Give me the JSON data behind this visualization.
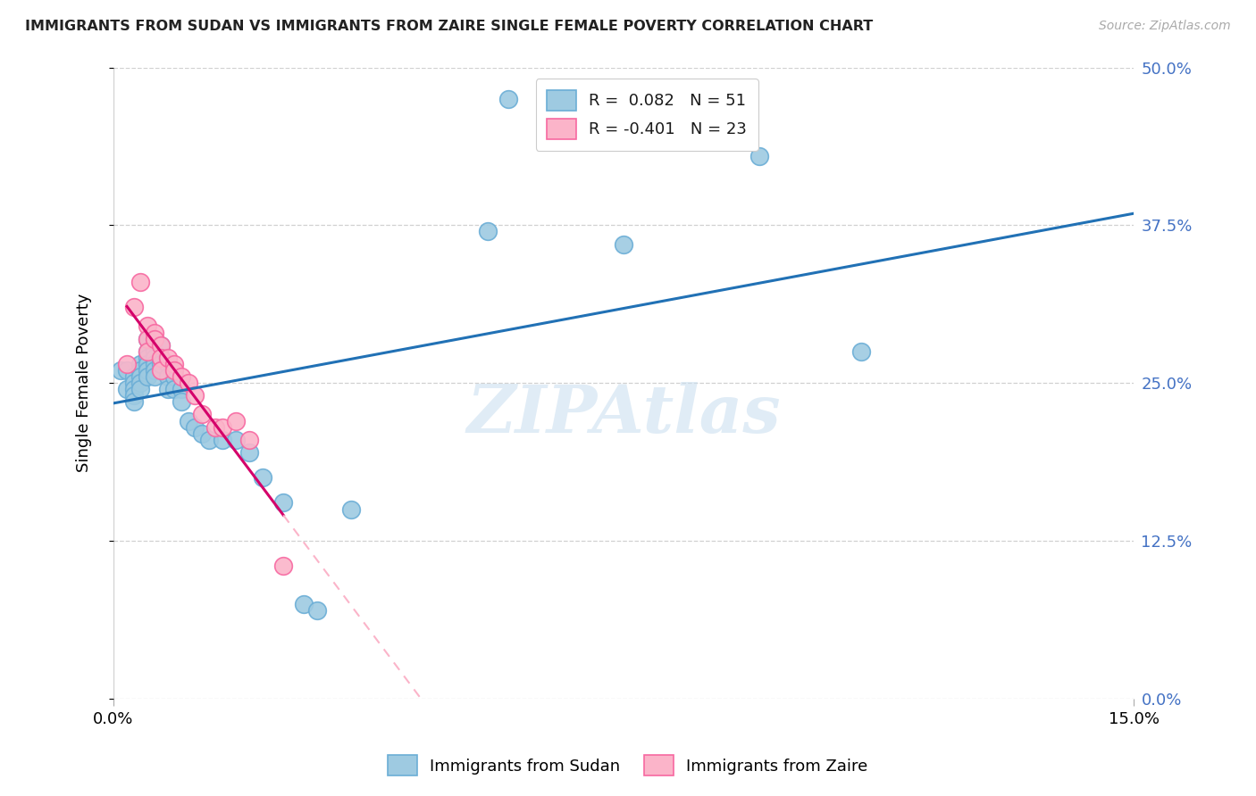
{
  "title": "IMMIGRANTS FROM SUDAN VS IMMIGRANTS FROM ZAIRE SINGLE FEMALE POVERTY CORRELATION CHART",
  "source": "Source: ZipAtlas.com",
  "ylabel_label": "Single Female Poverty",
  "xlim": [
    0.0,
    0.15
  ],
  "ylim": [
    0.0,
    0.5
  ],
  "x_tick_positions": [
    0.0,
    0.15
  ],
  "x_tick_labels": [
    "0.0%",
    "15.0%"
  ],
  "y_tick_positions": [
    0.0,
    0.125,
    0.25,
    0.375,
    0.5
  ],
  "y_tick_labels": [
    "0.0%",
    "12.5%",
    "25.0%",
    "37.5%",
    "50.0%"
  ],
  "sudan_color_edge": "#6baed6",
  "sudan_color_fill": "#9ecae1",
  "zaire_color_edge": "#f768a1",
  "zaire_color_fill": "#fbb4c9",
  "trendline_sudan_color": "#2171b5",
  "trendline_zaire_solid_color": "#d4006a",
  "trendline_zaire_dashed_color": "#fbb4c9",
  "legend_R_sudan": "R =  0.082",
  "legend_N_sudan": "N = 51",
  "legend_R_zaire": "R = -0.401",
  "legend_N_zaire": "N = 23",
  "legend_label_sudan": "Immigrants from Sudan",
  "legend_label_zaire": "Immigrants from Zaire",
  "watermark": "ZIPAtlas",
  "sudan_x": [
    0.001,
    0.002,
    0.002,
    0.003,
    0.003,
    0.003,
    0.003,
    0.003,
    0.004,
    0.004,
    0.004,
    0.004,
    0.004,
    0.005,
    0.005,
    0.005,
    0.005,
    0.005,
    0.005,
    0.006,
    0.006,
    0.006,
    0.006,
    0.006,
    0.007,
    0.007,
    0.007,
    0.008,
    0.008,
    0.008,
    0.009,
    0.009,
    0.01,
    0.01,
    0.011,
    0.012,
    0.013,
    0.014,
    0.016,
    0.018,
    0.02,
    0.022,
    0.025,
    0.028,
    0.03,
    0.035,
    0.055,
    0.058,
    0.075,
    0.095,
    0.11
  ],
  "sudan_y": [
    0.26,
    0.26,
    0.245,
    0.255,
    0.25,
    0.245,
    0.24,
    0.235,
    0.265,
    0.26,
    0.255,
    0.25,
    0.245,
    0.285,
    0.275,
    0.27,
    0.265,
    0.26,
    0.255,
    0.275,
    0.27,
    0.265,
    0.26,
    0.255,
    0.28,
    0.27,
    0.265,
    0.265,
    0.255,
    0.245,
    0.255,
    0.245,
    0.245,
    0.235,
    0.22,
    0.215,
    0.21,
    0.205,
    0.205,
    0.205,
    0.195,
    0.175,
    0.155,
    0.075,
    0.07,
    0.15,
    0.37,
    0.475,
    0.36,
    0.43,
    0.275
  ],
  "zaire_x": [
    0.002,
    0.003,
    0.004,
    0.005,
    0.005,
    0.005,
    0.006,
    0.006,
    0.007,
    0.007,
    0.007,
    0.008,
    0.009,
    0.009,
    0.01,
    0.011,
    0.012,
    0.013,
    0.015,
    0.016,
    0.018,
    0.02,
    0.025
  ],
  "zaire_y": [
    0.265,
    0.31,
    0.33,
    0.295,
    0.285,
    0.275,
    0.29,
    0.285,
    0.28,
    0.27,
    0.26,
    0.27,
    0.265,
    0.26,
    0.255,
    0.25,
    0.24,
    0.225,
    0.215,
    0.215,
    0.22,
    0.205,
    0.105
  ]
}
